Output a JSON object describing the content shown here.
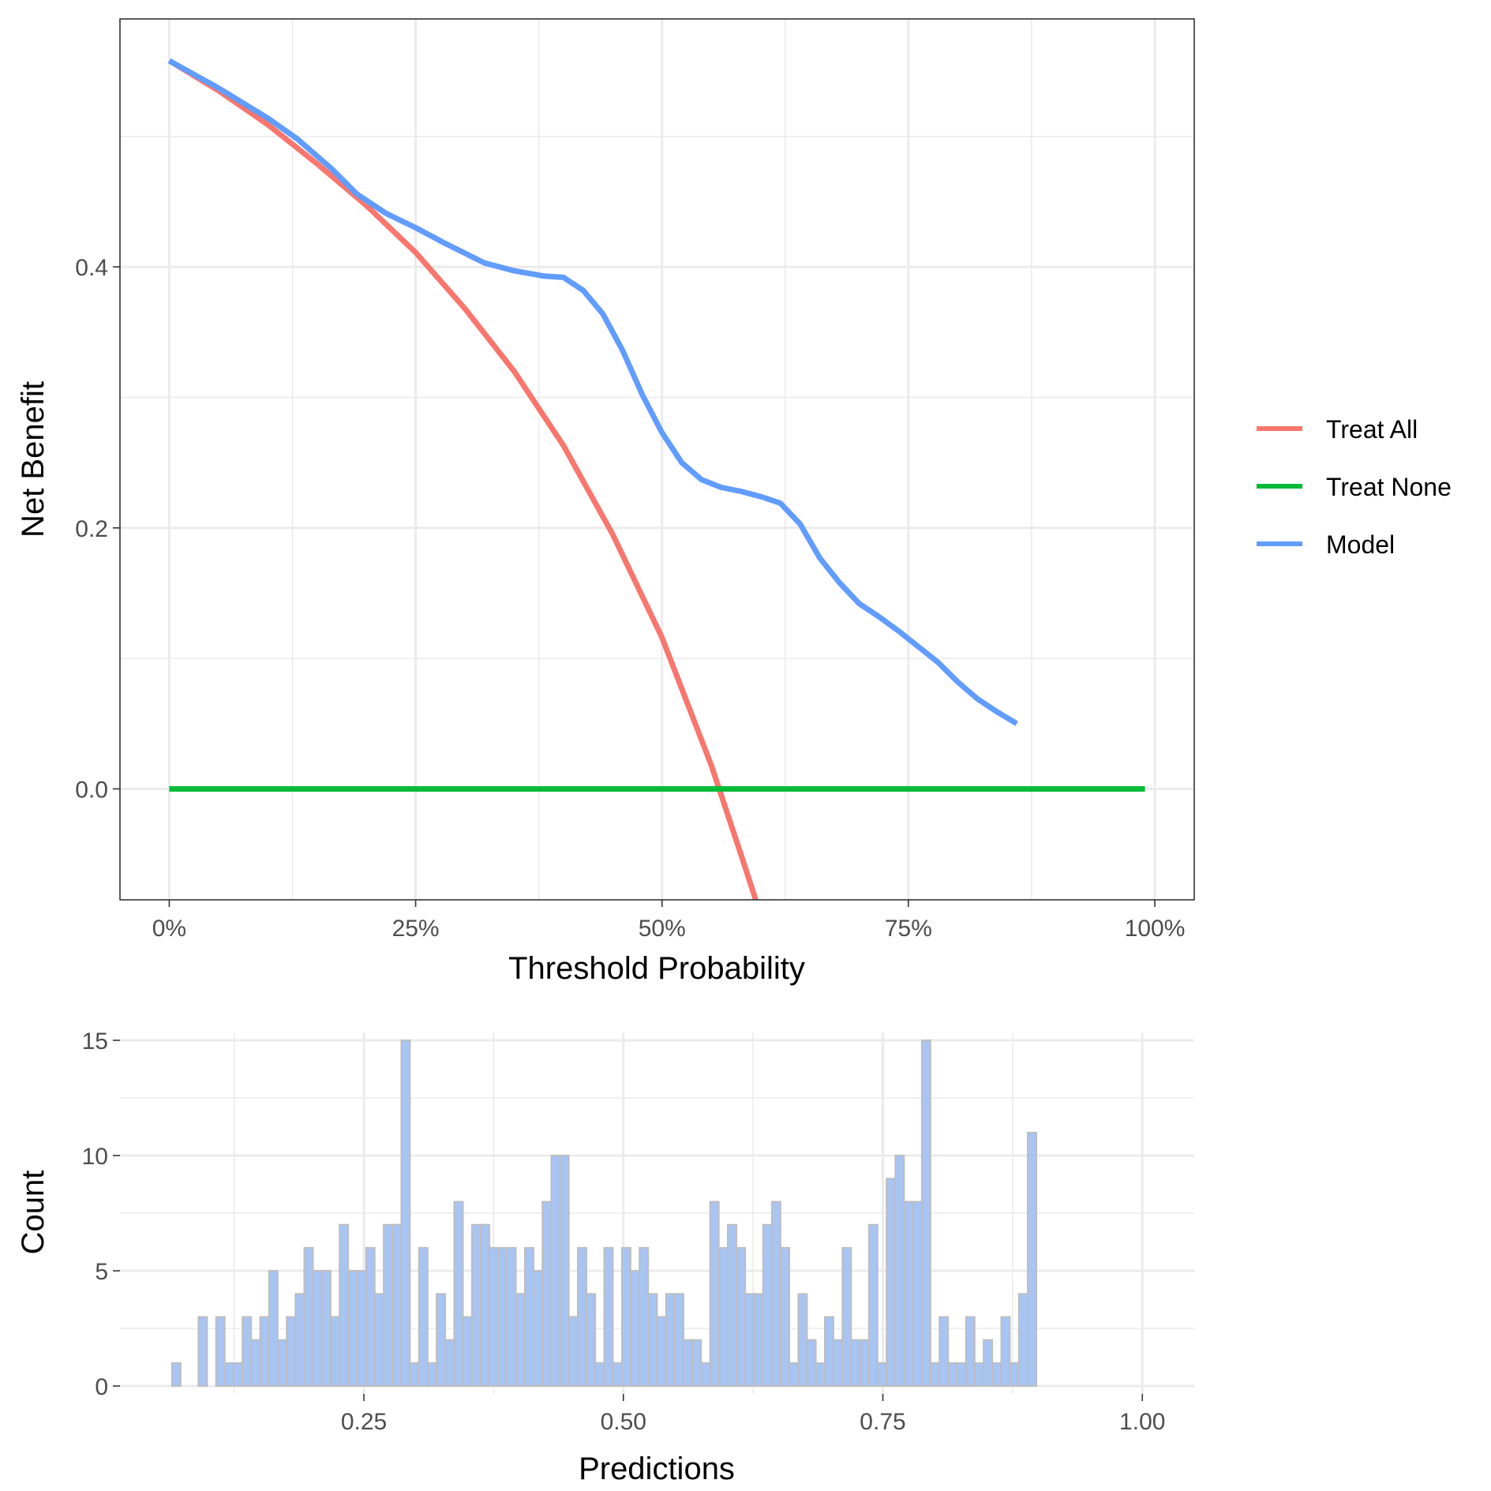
{
  "chart_data": [
    {
      "type": "line",
      "xlabel": "Threshold Probability",
      "ylabel": "Net Benefit",
      "xlim": [
        -0.05,
        1.04
      ],
      "ylim": [
        -0.085,
        0.59
      ],
      "x_ticks": [
        0,
        0.25,
        0.5,
        0.75,
        1.0
      ],
      "x_tick_labels": [
        "0%",
        "25%",
        "50%",
        "75%",
        "100%"
      ],
      "y_ticks": [
        0.0,
        0.2,
        0.4
      ],
      "y_tick_labels": [
        "0.0",
        "0.2",
        "0.4"
      ],
      "grid": true,
      "legend_position": "right",
      "series": [
        {
          "name": "Treat All",
          "color": "#F8766D",
          "x": [
            0,
            0.05,
            0.1,
            0.15,
            0.2,
            0.25,
            0.3,
            0.35,
            0.4,
            0.45,
            0.5,
            0.55,
            0.58,
            0.595
          ],
          "y": [
            0.558,
            0.535,
            0.509,
            0.479,
            0.447,
            0.411,
            0.368,
            0.32,
            0.263,
            0.195,
            0.116,
            0.018,
            -0.05,
            -0.085
          ]
        },
        {
          "name": "Treat None",
          "color": "#00BA38",
          "x": [
            0,
            0.99
          ],
          "y": [
            0,
            0
          ]
        },
        {
          "name": "Model",
          "color": "#619CFF",
          "x": [
            0,
            0.05,
            0.1,
            0.13,
            0.165,
            0.19,
            0.22,
            0.25,
            0.28,
            0.32,
            0.35,
            0.38,
            0.4,
            0.42,
            0.44,
            0.46,
            0.48,
            0.5,
            0.52,
            0.54,
            0.56,
            0.58,
            0.6,
            0.62,
            0.64,
            0.66,
            0.68,
            0.7,
            0.72,
            0.74,
            0.76,
            0.78,
            0.8,
            0.82,
            0.84,
            0.86
          ],
          "y": [
            0.558,
            0.537,
            0.514,
            0.498,
            0.475,
            0.456,
            0.441,
            0.43,
            0.418,
            0.403,
            0.397,
            0.393,
            0.392,
            0.382,
            0.364,
            0.336,
            0.302,
            0.273,
            0.25,
            0.237,
            0.231,
            0.228,
            0.224,
            0.219,
            0.203,
            0.177,
            0.158,
            0.142,
            0.132,
            0.121,
            0.109,
            0.097,
            0.082,
            0.069,
            0.059,
            0.05
          ]
        }
      ]
    },
    {
      "type": "bar",
      "xlabel": "Predictions",
      "ylabel": "Count",
      "x_ticks": [
        0.25,
        0.5,
        0.75,
        1.0
      ],
      "x_tick_labels": [
        "0.25",
        "0.50",
        "0.75",
        "1.00"
      ],
      "y_ticks": [
        0,
        5,
        10,
        15
      ],
      "y_tick_labels": [
        "0",
        "5",
        "10",
        "15"
      ],
      "xlim": [
        0.015,
        1.05
      ],
      "ylim": [
        0,
        15
      ],
      "bar_fill": "#A8C4F2",
      "bar_edge": "#BDBDBD",
      "bin_start": 0.065,
      "bin_width": 0.0085,
      "values": [
        1,
        0,
        0,
        3,
        0,
        3,
        1,
        1,
        3,
        2,
        3,
        5,
        2,
        3,
        4,
        6,
        5,
        5,
        3,
        7,
        5,
        5,
        6,
        4,
        7,
        7,
        15,
        1,
        6,
        1,
        4,
        2,
        8,
        3,
        7,
        7,
        6,
        6,
        6,
        4,
        6,
        5,
        8,
        10,
        10,
        3,
        6,
        4,
        1,
        6,
        1,
        6,
        5,
        6,
        4,
        3,
        4,
        4,
        2,
        2,
        1,
        8,
        6,
        7,
        6,
        4,
        4,
        7,
        8,
        6,
        1,
        4,
        2,
        1,
        3,
        2,
        6,
        2,
        2,
        7,
        1,
        9,
        10,
        8,
        8,
        15,
        1,
        3,
        1,
        1,
        3,
        1,
        2,
        1,
        3,
        1,
        4,
        11
      ]
    }
  ]
}
